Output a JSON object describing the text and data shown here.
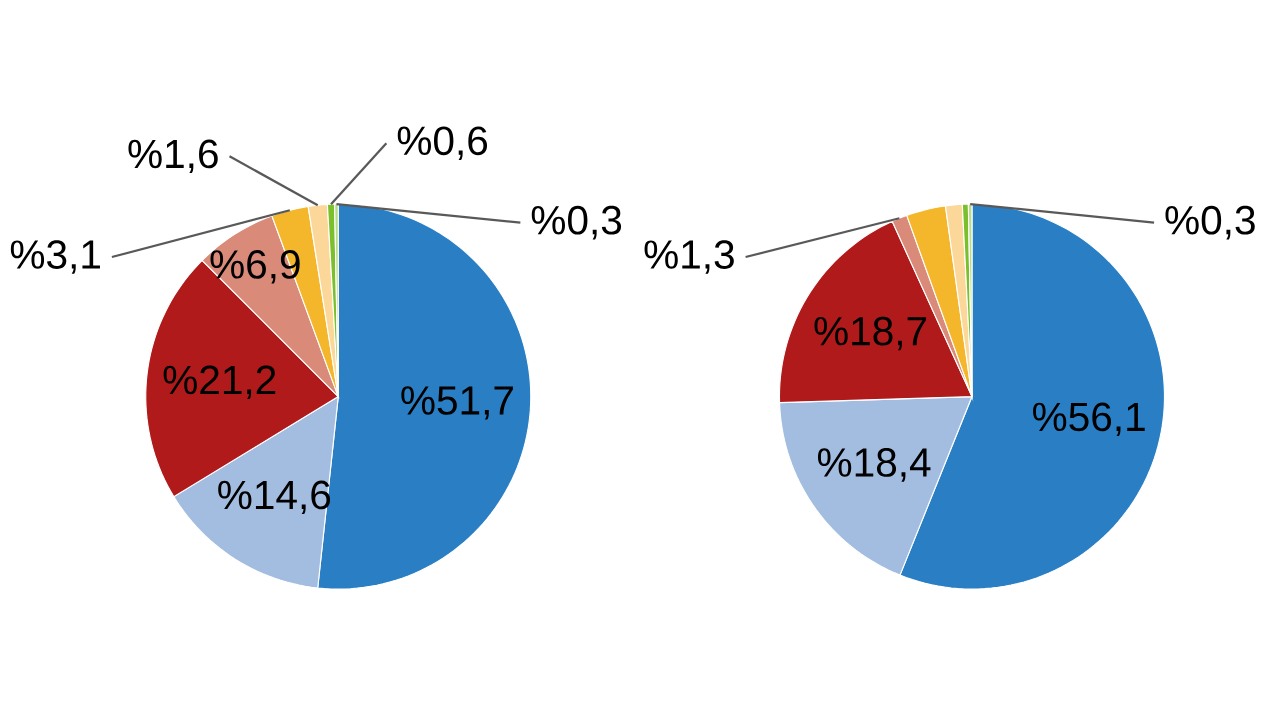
{
  "chart_data": [
    {
      "type": "pie",
      "categories": [
        null,
        null,
        null,
        null,
        null,
        null,
        null,
        null
      ],
      "values": [
        51.7,
        14.6,
        21.2,
        6.9,
        3.1,
        1.6,
        0.6,
        0.3
      ],
      "colors": [
        "#2a7fc4",
        "#a3bde0",
        "#b01a1a",
        "#d98a78",
        "#f4b62a",
        "#fbd89a",
        "#7cbf2d",
        "#b8dc8a"
      ],
      "value_labels": [
        "%51,7",
        "%14,6",
        "%21,2",
        "%6,9",
        "%3,1",
        "%1,6",
        "%0,6",
        "%0,3"
      ]
    },
    {
      "type": "pie",
      "categories": [
        null,
        null,
        null,
        null,
        null,
        null,
        null,
        null
      ],
      "values": [
        56.1,
        18.4,
        18.7,
        1.3,
        3.3,
        1.4,
        0.5,
        0.3
      ],
      "colors": [
        "#2a7fc4",
        "#a3bde0",
        "#b01a1a",
        "#d98a78",
        "#f4b62a",
        "#fbd89a",
        "#7cbf2d",
        "#b8dc8a"
      ],
      "value_labels": [
        "%56,1",
        "%18,4",
        "%18,7",
        "%1,3",
        null,
        null,
        null,
        "%0,3"
      ]
    }
  ]
}
